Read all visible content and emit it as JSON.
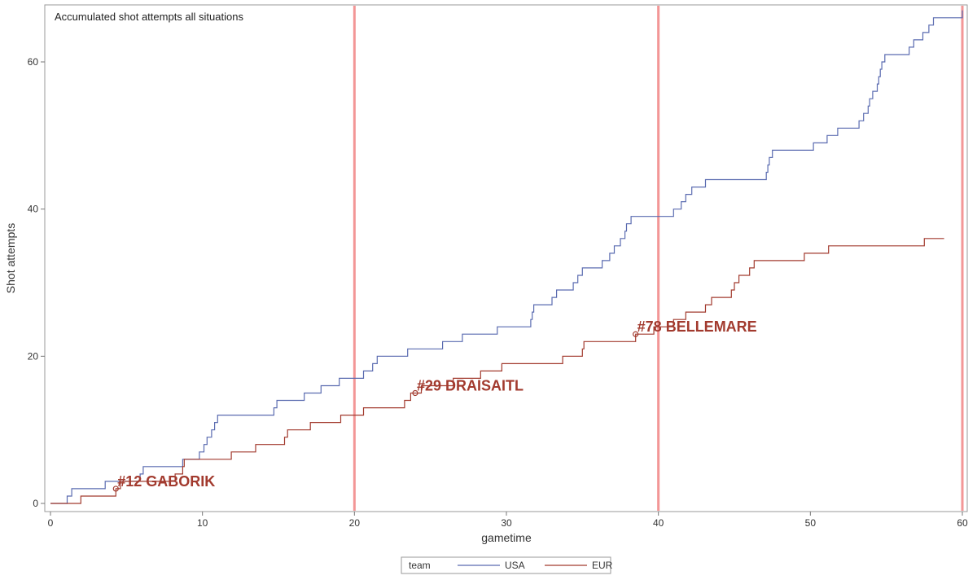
{
  "chart_data": {
    "type": "line",
    "step": true,
    "inset_title": "Accumulated shot attempts all situations",
    "xlabel": "gametime",
    "ylabel": "Shot attempts",
    "xlim": [
      0,
      60
    ],
    "ylim": [
      0,
      66
    ],
    "x_ticks": [
      0,
      10,
      20,
      30,
      40,
      50,
      60
    ],
    "y_ticks": [
      0,
      20,
      40,
      60
    ],
    "period_markers": [
      20,
      40,
      60
    ],
    "legend": {
      "title": "team",
      "position": "bottom-center"
    },
    "series": [
      {
        "name": "USA",
        "color": "#5A6BB0",
        "points": [
          [
            0,
            0
          ],
          [
            1.1,
            1
          ],
          [
            1.4,
            2
          ],
          [
            3.6,
            3
          ],
          [
            5.9,
            4
          ],
          [
            6.1,
            5
          ],
          [
            8.7,
            6
          ],
          [
            9.8,
            7
          ],
          [
            10.1,
            8
          ],
          [
            10.3,
            9
          ],
          [
            10.6,
            10
          ],
          [
            10.8,
            11
          ],
          [
            11.0,
            12
          ],
          [
            14.7,
            13
          ],
          [
            14.9,
            14
          ],
          [
            16.7,
            15
          ],
          [
            17.8,
            16
          ],
          [
            19.0,
            17
          ],
          [
            20.6,
            18
          ],
          [
            21.2,
            19
          ],
          [
            21.5,
            20
          ],
          [
            23.5,
            21
          ],
          [
            25.8,
            22
          ],
          [
            27.1,
            23
          ],
          [
            29.4,
            24
          ],
          [
            31.6,
            25
          ],
          [
            31.7,
            26
          ],
          [
            31.8,
            27
          ],
          [
            33.0,
            28
          ],
          [
            33.3,
            29
          ],
          [
            34.4,
            30
          ],
          [
            34.7,
            31
          ],
          [
            35.0,
            32
          ],
          [
            36.3,
            33
          ],
          [
            36.8,
            34
          ],
          [
            37.1,
            35
          ],
          [
            37.5,
            36
          ],
          [
            37.8,
            37
          ],
          [
            37.9,
            38
          ],
          [
            38.2,
            39
          ],
          [
            41.0,
            40
          ],
          [
            41.5,
            41
          ],
          [
            41.8,
            42
          ],
          [
            42.2,
            43
          ],
          [
            43.1,
            44
          ],
          [
            47.1,
            45
          ],
          [
            47.2,
            46
          ],
          [
            47.3,
            47
          ],
          [
            47.5,
            48
          ],
          [
            50.2,
            49
          ],
          [
            51.1,
            50
          ],
          [
            51.8,
            51
          ],
          [
            53.2,
            52
          ],
          [
            53.5,
            53
          ],
          [
            53.8,
            54
          ],
          [
            53.9,
            55
          ],
          [
            54.1,
            56
          ],
          [
            54.4,
            57
          ],
          [
            54.5,
            58
          ],
          [
            54.6,
            59
          ],
          [
            54.7,
            60
          ],
          [
            54.9,
            61
          ],
          [
            56.5,
            62
          ],
          [
            56.8,
            63
          ],
          [
            57.4,
            64
          ],
          [
            57.8,
            65
          ],
          [
            58.1,
            66
          ],
          [
            60,
            67
          ]
        ]
      },
      {
        "name": "EUR",
        "color": "#A23A2E",
        "points": [
          [
            0,
            0
          ],
          [
            2.0,
            1
          ],
          [
            4.3,
            2
          ],
          [
            4.6,
            3
          ],
          [
            8.2,
            4
          ],
          [
            8.7,
            5
          ],
          [
            8.8,
            6
          ],
          [
            11.9,
            7
          ],
          [
            13.5,
            8
          ],
          [
            15.4,
            9
          ],
          [
            15.6,
            10
          ],
          [
            17.1,
            11
          ],
          [
            19.1,
            12
          ],
          [
            20.6,
            13
          ],
          [
            23.3,
            14
          ],
          [
            23.7,
            15
          ],
          [
            24.4,
            16
          ],
          [
            26.5,
            17
          ],
          [
            28.3,
            18
          ],
          [
            29.7,
            19
          ],
          [
            33.7,
            20
          ],
          [
            35.0,
            21
          ],
          [
            35.1,
            22
          ],
          [
            38.5,
            23
          ],
          [
            39.7,
            24
          ],
          [
            41.0,
            25
          ],
          [
            41.8,
            26
          ],
          [
            43.1,
            27
          ],
          [
            43.5,
            28
          ],
          [
            44.8,
            29
          ],
          [
            45.0,
            30
          ],
          [
            45.3,
            31
          ],
          [
            46.0,
            32
          ],
          [
            46.3,
            33
          ],
          [
            49.6,
            34
          ],
          [
            51.2,
            35
          ],
          [
            57.5,
            36
          ],
          [
            58.8,
            36
          ]
        ]
      }
    ],
    "annotations": [
      {
        "text": "#12 GABORIK",
        "x": 4.3,
        "y": 2
      },
      {
        "text": "#29 DRAISAITL",
        "x": 24.0,
        "y": 15
      },
      {
        "text": "#78 BELLEMARE",
        "x": 38.5,
        "y": 23
      }
    ]
  }
}
